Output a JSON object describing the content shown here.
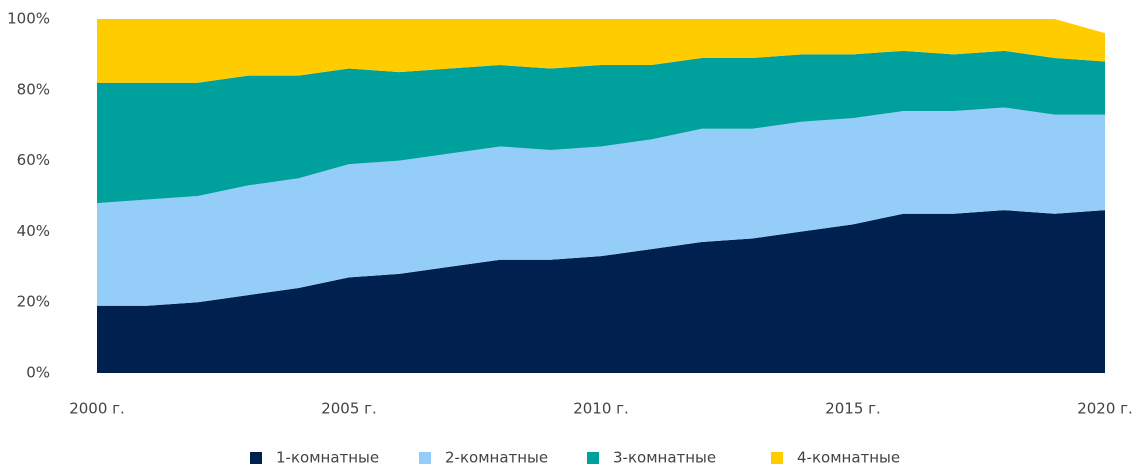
{
  "chart_data": {
    "type": "stacked_area",
    "x": [
      2000,
      2001,
      2002,
      2003,
      2004,
      2005,
      2006,
      2007,
      2008,
      2009,
      2010,
      2011,
      2012,
      2013,
      2014,
      2015,
      2016,
      2017,
      2018,
      2019,
      2020
    ],
    "series": [
      {
        "name": "1-комнатные",
        "color": "#00214f",
        "values": [
          19,
          19,
          20,
          22,
          24,
          27,
          28,
          30,
          32,
          32,
          33,
          35,
          37,
          38,
          40,
          42,
          45,
          45,
          46,
          45,
          46
        ]
      },
      {
        "name": "2-комнатные",
        "color": "#93cdf8",
        "values": [
          29,
          30,
          30,
          31,
          31,
          32,
          32,
          32,
          32,
          31,
          31,
          31,
          32,
          31,
          31,
          30,
          29,
          29,
          29,
          28,
          27
        ]
      },
      {
        "name": "3-комнатные",
        "color": "#00a09c",
        "values": [
          34,
          33,
          32,
          31,
          29,
          27,
          25,
          24,
          23,
          23,
          23,
          21,
          20,
          20,
          19,
          18,
          17,
          16,
          16,
          16,
          15
        ]
      },
      {
        "name": "4-комнатные",
        "color": "#ffcc00",
        "values": [
          18,
          18,
          18,
          16,
          16,
          14,
          15,
          14,
          13,
          14,
          13,
          13,
          11,
          11,
          10,
          10,
          9,
          10,
          9,
          11,
          8
        ]
      }
    ],
    "xlim": [
      2000,
      2020
    ],
    "xticks": [
      {
        "value": 2000,
        "label": "2000 г."
      },
      {
        "value": 2005,
        "label": "2005 г."
      },
      {
        "value": 2010,
        "label": "2010 г."
      },
      {
        "value": 2015,
        "label": "2015 г."
      },
      {
        "value": 2020,
        "label": "2020 г."
      }
    ],
    "ylim": [
      0,
      100
    ],
    "yticks": [
      {
        "value": 0,
        "label": "0%"
      },
      {
        "value": 20,
        "label": "20%"
      },
      {
        "value": 40,
        "label": "40%"
      },
      {
        "value": 60,
        "label": "60%"
      },
      {
        "value": 80,
        "label": "80%"
      },
      {
        "value": 100,
        "label": "100%"
      }
    ],
    "grid": false,
    "legend": "bottom"
  }
}
